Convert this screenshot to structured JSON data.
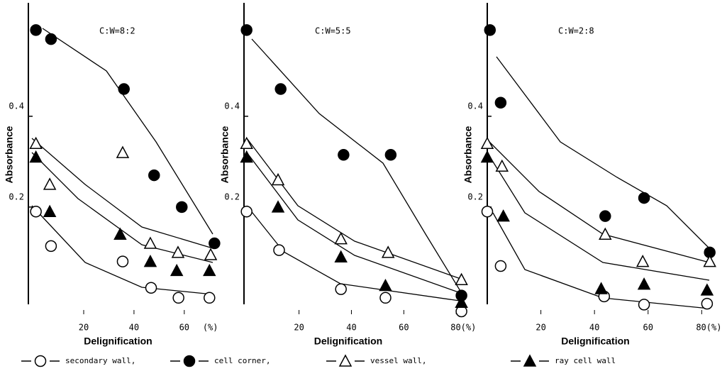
{
  "chart_data": [
    {
      "type": "scatter",
      "title": "C:W=8:2",
      "xlabel": "Delignification",
      "ylabel": "Absorbance",
      "x_unit": "(%)",
      "xlim": [
        -2,
        75
      ],
      "xticks": [
        20,
        40,
        60
      ],
      "ylim": [
        -0.03,
        0.65
      ],
      "yticks": [
        0.2,
        0.4
      ],
      "series": [
        {
          "name": "secondary wall,",
          "marker": "circle",
          "filled": false,
          "color": "#000000",
          "x": [
            1,
            7,
            35.5,
            46.8,
            57.7,
            70
          ],
          "values": [
            0.19,
            0.114,
            0.08,
            0.022,
            0.0,
            0.0
          ]
        },
        {
          "name": "cell corner,",
          "marker": "circle",
          "filled": true,
          "color": "#000000",
          "x": [
            1,
            7,
            36,
            48,
            59,
            72
          ],
          "values": [
            0.59,
            0.57,
            0.46,
            0.27,
            0.2,
            0.12
          ]
        },
        {
          "name": "vessel wall,",
          "marker": "triangle",
          "filled": false,
          "color": "#000000",
          "x": [
            1,
            6.5,
            35.5,
            46.5,
            57.5,
            70.5
          ],
          "values": [
            0.34,
            0.25,
            0.32,
            0.12,
            0.1,
            0.095
          ]
        },
        {
          "name": "ray cell wall",
          "marker": "triangle",
          "filled": true,
          "color": "#000000",
          "x": [
            1,
            6.5,
            34.5,
            46.5,
            57,
            70
          ],
          "values": [
            0.31,
            0.19,
            0.14,
            0.08,
            0.06,
            0.06
          ]
        }
      ]
    },
    {
      "type": "scatter",
      "title": "C:W=5:5",
      "xlabel": "Delignification",
      "ylabel": "Absorbance",
      "xlim": [
        -1,
        84
      ],
      "xticks": [
        20,
        40,
        60,
        {
          "value": 80,
          "label": "80(%)"
        }
      ],
      "ylim": [
        -0.03,
        0.65
      ],
      "yticks": [
        0.2,
        0.4
      ],
      "series": [
        {
          "name": "secondary wall,",
          "marker": "circle",
          "filled": false,
          "color": "#000000",
          "x": [
            0,
            12.4,
            36,
            53,
            82
          ],
          "values": [
            0.19,
            0.105,
            0.019,
            0.0,
            -0.03
          ]
        },
        {
          "name": "cell corner,",
          "marker": "circle",
          "filled": true,
          "color": "#000000",
          "x": [
            0,
            13,
            37,
            55,
            82
          ],
          "values": [
            0.59,
            0.46,
            0.315,
            0.315,
            0.005
          ]
        },
        {
          "name": "vessel wall,",
          "marker": "triangle",
          "filled": false,
          "color": "#000000",
          "x": [
            0,
            12,
            36,
            54,
            82
          ],
          "values": [
            0.34,
            0.26,
            0.13,
            0.1,
            0.04
          ]
        },
        {
          "name": "ray cell wall",
          "marker": "triangle",
          "filled": true,
          "color": "#000000",
          "x": [
            0,
            12,
            36,
            53,
            82
          ],
          "values": [
            0.31,
            0.2,
            0.09,
            0.027,
            -0.01
          ]
        }
      ]
    },
    {
      "type": "scatter",
      "title": "C:W=2:8",
      "xlabel": "Delignification",
      "ylabel": "Absorbance",
      "xlim": [
        0,
        86
      ],
      "xticks": [
        20,
        40,
        60,
        {
          "value": 80,
          "label": "80(%)"
        }
      ],
      "ylim": [
        -0.03,
        0.65
      ],
      "yticks": [
        0.2,
        0.4
      ],
      "series": [
        {
          "name": "secondary wall,",
          "marker": "circle",
          "filled": false,
          "color": "#000000",
          "x": [
            0,
            5,
            43.6,
            58.5,
            82
          ],
          "values": [
            0.19,
            0.07,
            0.003,
            -0.015,
            -0.013
          ]
        },
        {
          "name": "cell corner,",
          "marker": "circle",
          "filled": true,
          "color": "#000000",
          "x": [
            1,
            5,
            44,
            58.5,
            83
          ],
          "values": [
            0.59,
            0.43,
            0.18,
            0.22,
            0.1
          ]
        },
        {
          "name": "vessel wall,",
          "marker": "triangle",
          "filled": false,
          "color": "#000000",
          "x": [
            0,
            5.5,
            44,
            58,
            83
          ],
          "values": [
            0.34,
            0.29,
            0.14,
            0.08,
            0.08
          ]
        },
        {
          "name": "ray cell wall",
          "marker": "triangle",
          "filled": true,
          "color": "#000000",
          "x": [
            0,
            6,
            42.5,
            58.5,
            82
          ],
          "values": [
            0.31,
            0.18,
            0.02,
            0.03,
            0.017
          ]
        }
      ]
    }
  ]
}
